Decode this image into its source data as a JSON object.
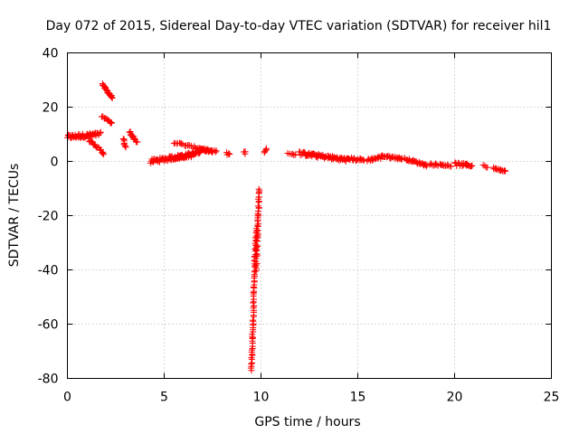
{
  "chart_data": {
    "type": "scatter",
    "title": "Day 072 of 2015, Sidereal Day-to-day VTEC variation (SDTVAR) for receiver hil1",
    "xlabel": "GPS time / hours",
    "ylabel": "SDTVAR / TECUs",
    "xlim": [
      0,
      25
    ],
    "ylim": [
      -80,
      40
    ],
    "xticks": [
      0,
      5,
      10,
      15,
      20,
      25
    ],
    "yticks": [
      -80,
      -60,
      -40,
      -20,
      0,
      20,
      40
    ],
    "grid": true,
    "marker": "+",
    "color": "#ff0000",
    "series": [
      {
        "name": "SDTVAR",
        "segments": [
          {
            "x0": 0.0,
            "y0": 9.0,
            "x1": 1.7,
            "y1": 10.0,
            "n": 60,
            "spread": 1.5
          },
          {
            "x0": 1.1,
            "y0": 8.0,
            "x1": 1.9,
            "y1": 3.0,
            "n": 22,
            "spread": 1.0
          },
          {
            "x0": 1.8,
            "y0": 28.5,
            "x1": 2.3,
            "y1": 23.5,
            "n": 24,
            "spread": 0.8
          },
          {
            "x0": 1.8,
            "y0": 16.5,
            "x1": 2.3,
            "y1": 14.0,
            "n": 14,
            "spread": 0.6
          },
          {
            "x0": 2.9,
            "y0": 8.0,
            "x1": 3.0,
            "y1": 5.0,
            "n": 8,
            "spread": 1.0
          },
          {
            "x0": 3.2,
            "y0": 11.0,
            "x1": 3.6,
            "y1": 7.0,
            "n": 14,
            "spread": 1.0
          },
          {
            "x0": 4.3,
            "y0": 0.0,
            "x1": 6.5,
            "y1": 2.5,
            "n": 70,
            "spread": 1.6
          },
          {
            "x0": 5.5,
            "y0": 1.0,
            "x1": 7.2,
            "y1": 4.5,
            "n": 50,
            "spread": 1.2
          },
          {
            "x0": 5.5,
            "y0": 7.0,
            "x1": 7.5,
            "y1": 3.5,
            "n": 30,
            "spread": 0.8
          },
          {
            "x0": 6.8,
            "y0": 4.5,
            "x1": 7.7,
            "y1": 3.5,
            "n": 16,
            "spread": 1.0
          },
          {
            "x0": 8.2,
            "y0": 3.0,
            "x1": 8.4,
            "y1": 2.5,
            "n": 5,
            "spread": 1.2
          },
          {
            "x0": 9.1,
            "y0": 3.0,
            "x1": 9.2,
            "y1": 3.5,
            "n": 4,
            "spread": 1.2
          },
          {
            "x0": 9.5,
            "y0": -77.0,
            "x1": 9.75,
            "y1": -25.0,
            "n": 70,
            "spread": 0.8
          },
          {
            "x0": 9.75,
            "y0": -40.0,
            "x1": 9.9,
            "y1": -10.0,
            "n": 45,
            "spread": 0.8
          },
          {
            "x0": 10.2,
            "y0": 3.0,
            "x1": 10.3,
            "y1": 5.0,
            "n": 6,
            "spread": 0.8
          },
          {
            "x0": 11.4,
            "y0": 3.0,
            "x1": 11.8,
            "y1": 2.5,
            "n": 6,
            "spread": 0.6
          },
          {
            "x0": 12.0,
            "y0": 3.0,
            "x1": 14.5,
            "y1": 0.5,
            "n": 80,
            "spread": 1.4
          },
          {
            "x0": 14.5,
            "y0": 1.0,
            "x1": 15.3,
            "y1": 0.5,
            "n": 20,
            "spread": 1.0
          },
          {
            "x0": 15.5,
            "y0": 0.5,
            "x1": 16.2,
            "y1": 1.5,
            "n": 18,
            "spread": 1.0
          },
          {
            "x0": 16.2,
            "y0": 2.0,
            "x1": 17.3,
            "y1": 1.0,
            "n": 30,
            "spread": 0.8
          },
          {
            "x0": 17.4,
            "y0": 1.0,
            "x1": 18.6,
            "y1": -1.5,
            "n": 30,
            "spread": 0.8
          },
          {
            "x0": 18.7,
            "y0": -1.0,
            "x1": 19.8,
            "y1": -1.5,
            "n": 20,
            "spread": 0.8
          },
          {
            "x0": 20.0,
            "y0": -1.0,
            "x1": 20.9,
            "y1": -1.5,
            "n": 22,
            "spread": 1.2
          },
          {
            "x0": 21.5,
            "y0": -1.5,
            "x1": 21.7,
            "y1": -2.0,
            "n": 4,
            "spread": 1.0
          },
          {
            "x0": 22.0,
            "y0": -2.5,
            "x1": 22.6,
            "y1": -3.5,
            "n": 16,
            "spread": 0.6
          }
        ]
      }
    ]
  }
}
